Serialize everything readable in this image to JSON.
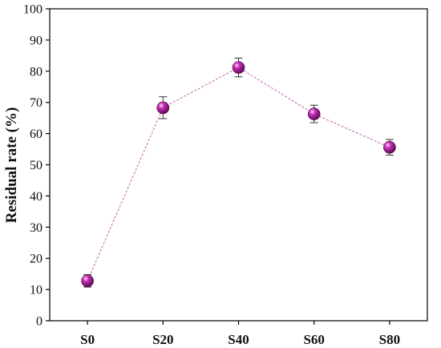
{
  "chart_data": {
    "type": "scatter",
    "title": "",
    "xlabel": "",
    "ylabel": "Residual rate (%)",
    "categories": [
      "S0",
      "S20",
      "S40",
      "S60",
      "S80"
    ],
    "series": [
      {
        "values": [
          12.8,
          68.3,
          81.2,
          66.3,
          55.6
        ],
        "errors": [
          2.0,
          3.5,
          3.0,
          2.8,
          2.5
        ],
        "connect_line": "dashed",
        "color": "#b01aa0",
        "line_color": "#c060b8"
      }
    ],
    "ylim": [
      0,
      100
    ],
    "yticks": [
      0,
      10,
      20,
      30,
      40,
      50,
      60,
      70,
      80,
      90,
      100
    ],
    "grid": false,
    "legend": "none"
  }
}
